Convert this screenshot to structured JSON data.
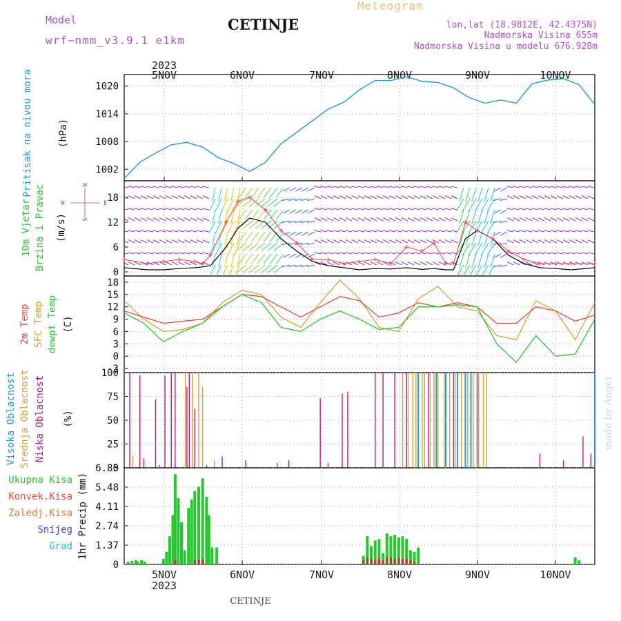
{
  "header": {
    "model_label": "Model",
    "model_name": "wrf−nmm_v3.9.1 e1km",
    "title": "CETINJE",
    "product": "Meteogram",
    "lonlat": "lon,lat (18.9812E, 42.4375N)",
    "elevation": "Nadmorska Visina 655m",
    "model_elevation": "Nadmorska Visina u modelu 676.928m",
    "year_top": "2023",
    "year_bottom": "2023",
    "footer_station": "CETINJE",
    "watermark": "made by Angel"
  },
  "days": [
    "5NOV",
    "6NOV",
    "7NOV",
    "8NOV",
    "9NOV",
    "10NOV"
  ],
  "colors": {
    "pressure": "#1e9bd7",
    "t2m": "#e8463c",
    "sfc": "#d9a038",
    "dew": "#27c82e",
    "low_cloud": "#c0177e",
    "mid_cloud": "#d9a038",
    "high_cloud": "#1e9bd7",
    "total_rain": "#27c82e",
    "conv_rain": "#e8463c",
    "wind_speed": "#000000",
    "gust": "#ff3b3b",
    "dir_label": "#a040d0"
  },
  "chart_data": [
    {
      "panel": "pressure",
      "type": "line",
      "ylabel_main": "Pritisak na nivou mora",
      "ylabel_unit": "(hPa)",
      "yticks": [
        1002,
        1008,
        1014,
        1020
      ],
      "ylim": [
        999.5,
        1022.5
      ],
      "series": [
        {
          "x": [
            0,
            0.2,
            0.4,
            0.6,
            0.8,
            1.0,
            1.2,
            1.4,
            1.6,
            1.8,
            2.0,
            2.2,
            2.4,
            2.6,
            2.8,
            3.0,
            3.2,
            3.4,
            3.6,
            3.8,
            4.0,
            4.2,
            4.4,
            4.6,
            4.8,
            5.0,
            5.2,
            5.4,
            5.6,
            5.8,
            6.0
          ],
          "y": [
            1000,
            1003.5,
            1005.5,
            1007.3,
            1007.8,
            1006.8,
            1004.5,
            1003.2,
            1001.5,
            1003.5,
            1007.5,
            1010,
            1012.5,
            1015,
            1016.5,
            1019.2,
            1021.2,
            1021.2,
            1022,
            1021,
            1020.8,
            1019.6,
            1017.5,
            1016.3,
            1017,
            1016.3,
            1020.5,
            1021.3,
            1021.6,
            1020.3,
            1016
          ]
        }
      ]
    },
    {
      "panel": "wind",
      "type": "line",
      "ylabel_main": "10m Vjetar",
      "ylabel_sub": "Brzina i Pravac",
      "ylabel_unit": "(m/s)",
      "compass": {
        "n": "N",
        "s": "S",
        "e": "E",
        "w": "W"
      },
      "yticks": [
        0,
        6,
        12,
        18
      ],
      "ylim": [
        -1,
        22
      ],
      "series": [
        {
          "name": "speed",
          "x": [
            0,
            0.3,
            0.5,
            0.7,
            0.9,
            1.0,
            1.1,
            1.3,
            1.45,
            1.6,
            1.8,
            2.0,
            2.2,
            2.4,
            2.6,
            2.8,
            3.0,
            3.2,
            3.4,
            3.6,
            3.8,
            3.95,
            4.1,
            4.2,
            4.35,
            4.5,
            4.7,
            4.9,
            5.1,
            5.3,
            5.5,
            5.7,
            6.0
          ],
          "y": [
            1,
            0.5,
            0.5,
            0.8,
            1,
            1.2,
            1.5,
            6,
            10.5,
            13,
            12,
            8,
            5,
            2.5,
            1.5,
            1,
            0.5,
            0.8,
            0.7,
            1,
            0.6,
            0.8,
            0.5,
            0.5,
            8,
            10,
            8,
            4,
            2,
            1,
            0.8,
            0.5,
            1
          ]
        },
        {
          "name": "gust",
          "x": [
            0,
            0.3,
            0.5,
            0.7,
            0.9,
            1.0,
            1.1,
            1.3,
            1.45,
            1.6,
            1.8,
            2.0,
            2.2,
            2.4,
            2.6,
            2.8,
            3.0,
            3.2,
            3.4,
            3.6,
            3.8,
            3.95,
            4.1,
            4.2,
            4.35,
            4.5,
            4.7,
            4.9,
            5.1,
            5.3,
            5.5,
            5.7,
            6.0
          ],
          "y": [
            3,
            2,
            2.5,
            3,
            2.5,
            2,
            4,
            12,
            17,
            18,
            15,
            10,
            7,
            3,
            3,
            2,
            2.5,
            3,
            2,
            6,
            5,
            7,
            2,
            2,
            12,
            10,
            8,
            5,
            3,
            2,
            2,
            2,
            2
          ]
        }
      ]
    },
    {
      "panel": "temperature",
      "type": "line",
      "ylabel_lines": [
        "2m Temp",
        "SFC Temp",
        "dewpt Temp"
      ],
      "ylabel_unit": "(C)",
      "yticks": [
        -3,
        0,
        3,
        6,
        9,
        12,
        15,
        18
      ],
      "ylim": [
        -4,
        19.5
      ],
      "series": [
        {
          "name": "2m Temp",
          "x": [
            0,
            0.25,
            0.5,
            0.75,
            1.0,
            1.25,
            1.5,
            1.75,
            2.0,
            2.25,
            2.5,
            2.75,
            3.0,
            3.25,
            3.5,
            3.75,
            4.0,
            4.25,
            4.5,
            4.75,
            5.0,
            5.25,
            5.5,
            5.75,
            6.0
          ],
          "y": [
            11,
            9.5,
            8,
            8.5,
            9,
            12,
            15,
            14.5,
            12,
            9.5,
            12,
            14.5,
            13.5,
            9.5,
            10.5,
            13,
            12,
            13,
            12,
            8,
            8,
            12,
            11,
            8.5,
            10
          ]
        },
        {
          "name": "SFC Temp",
          "x": [
            0,
            0.25,
            0.5,
            0.75,
            1.0,
            1.25,
            1.5,
            1.75,
            2.0,
            2.25,
            2.5,
            2.75,
            3.0,
            3.25,
            3.5,
            3.75,
            4.0,
            4.25,
            4.5,
            4.75,
            5.0,
            5.25,
            5.5,
            5.75,
            6.0
          ],
          "y": [
            13.5,
            9,
            6,
            6.5,
            8,
            13,
            16,
            15,
            9.5,
            7,
            13,
            18.5,
            14,
            7,
            6,
            14,
            17,
            12,
            11,
            5,
            4,
            13.5,
            11,
            4,
            13
          ]
        },
        {
          "name": "dewpt Temp",
          "x": [
            0,
            0.25,
            0.5,
            0.75,
            1.0,
            1.25,
            1.5,
            1.75,
            2.0,
            2.25,
            2.5,
            2.75,
            3.0,
            3.25,
            3.5,
            3.75,
            4.0,
            4.25,
            4.5,
            4.75,
            5.0,
            5.25,
            5.5,
            5.75,
            6.0
          ],
          "y": [
            10.5,
            8,
            3.5,
            6,
            8,
            12,
            15,
            13,
            7,
            6,
            9,
            11,
            9,
            6.5,
            7,
            12,
            12,
            12.5,
            12,
            3,
            -1.5,
            5,
            0,
            0.5,
            9
          ]
        }
      ]
    },
    {
      "panel": "clouds",
      "type": "bar",
      "ylabel_lines": [
        "Visoka Oblacnost",
        "Srednja Oblacnost",
        "Niska Oblacnost"
      ],
      "ylabel_unit": "(%)",
      "yticks": [
        0,
        25,
        50,
        75,
        100
      ],
      "ylim": [
        0,
        100
      ],
      "series": [
        {
          "name": "Niska Oblacnost",
          "x": [
            0.07,
            0.2,
            0.25,
            0.4,
            0.52,
            0.6,
            0.65,
            0.8,
            0.83,
            0.9,
            1.25,
            1.55,
            1.95,
            2.1,
            2.5,
            2.6,
            2.78,
            2.85,
            3.2,
            3.3,
            3.45,
            3.6,
            3.75,
            3.88,
            4.2,
            4.5,
            5.3,
            5.6,
            5.85,
            5.95
          ],
          "y": [
            100,
            97,
            10,
            72,
            97,
            100,
            100,
            85,
            100,
            62,
            12,
            8,
            5,
            8,
            73,
            5,
            78,
            80,
            100,
            100,
            100,
            100,
            80,
            100,
            100,
            100,
            15,
            8,
            33,
            15
          ]
        },
        {
          "name": "Srednja Oblacnost",
          "x": [
            0.11,
            0.78,
            0.87,
            0.95,
            1.0,
            1.15,
            3.55,
            3.62,
            3.68,
            3.72,
            3.8,
            3.83,
            3.9,
            3.95,
            4.0,
            4.08,
            4.15,
            4.22,
            4.3,
            4.38,
            4.45,
            4.52,
            4.58,
            4.62
          ],
          "y": [
            13,
            100,
            100,
            100,
            85,
            8,
            100,
            100,
            100,
            100,
            100,
            100,
            100,
            100,
            100,
            100,
            100,
            100,
            100,
            100,
            100,
            100,
            100,
            100
          ]
        },
        {
          "name": "Visoka Oblacnost",
          "x": [
            0.45,
            1.05,
            3.75,
            3.98,
            4.1,
            4.25,
            4.35,
            4.42,
            6.0
          ],
          "y": [
            3,
            3,
            100,
            100,
            100,
            100,
            100,
            100,
            100
          ]
        }
      ]
    },
    {
      "panel": "precipitation",
      "type": "bar",
      "legend": [
        "Ukupna Kisa",
        "Konvek.Kisa",
        "Zaledj.Kisa",
        "Snijeg",
        "Grad"
      ],
      "ylabel_unit": "1hr Precip (mm)",
      "yticks": [
        0,
        1.37,
        2.74,
        4.11,
        5.48,
        6.85
      ],
      "ylim": [
        0,
        6.85
      ],
      "series": [
        {
          "name": "Ukupna Kisa",
          "x": [
            0.05,
            0.1,
            0.15,
            0.17,
            0.22,
            0.26,
            0.5,
            0.54,
            0.58,
            0.62,
            0.65,
            0.69,
            0.73,
            0.77,
            0.82,
            0.86,
            0.9,
            0.95,
            1.0,
            1.05,
            1.08,
            1.12,
            1.18,
            3.05,
            3.1,
            3.15,
            3.2,
            3.25,
            3.3,
            3.35,
            3.4,
            3.45,
            3.5,
            3.55,
            3.6,
            3.65,
            3.7,
            3.75,
            5.75,
            5.8
          ],
          "y": [
            0.2,
            0.25,
            0.3,
            0.2,
            0.3,
            0.2,
            0.4,
            0.9,
            2.0,
            3.5,
            6.4,
            4.7,
            3.0,
            1.0,
            4.0,
            4.6,
            5.2,
            5.5,
            6.1,
            4.8,
            3.5,
            1.2,
            1.2,
            0.6,
            2.0,
            1.3,
            1.7,
            1.8,
            0.8,
            2.2,
            2.0,
            2.1,
            1.9,
            2.0,
            1.8,
            1.0,
            0.9,
            1.2,
            0.5,
            0.3
          ]
        },
        {
          "name": "Konvek.Kisa",
          "x": [
            0.65,
            0.9,
            0.95,
            1.0,
            3.05,
            3.1,
            3.15,
            3.2,
            3.25,
            3.3,
            3.35,
            3.4,
            3.45,
            3.5,
            3.55,
            3.6,
            3.65,
            3.7
          ],
          "y": [
            0.3,
            0.3,
            0.3,
            0.4,
            0.3,
            0.5,
            0.4,
            0.3,
            0.4,
            0.3,
            0.5,
            0.5,
            0.4,
            0.5,
            0.4,
            0.4,
            0.3,
            0.2
          ]
        }
      ]
    }
  ]
}
